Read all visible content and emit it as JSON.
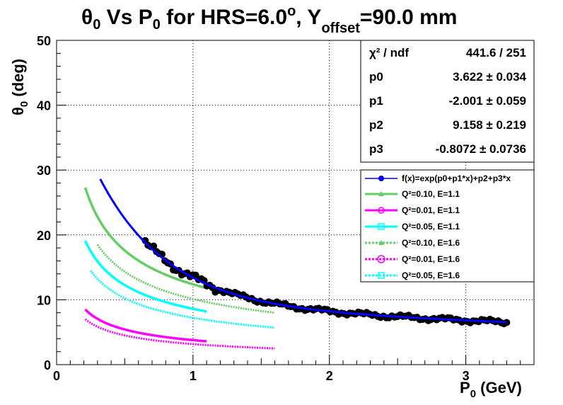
{
  "title": {
    "theta": "θ",
    "sub0": "0",
    "vs": " Vs P",
    "sub0b": "0",
    "for": " for HRS=6.0",
    "deg": "o",
    "comma": ", Y",
    "offset": "offset",
    "tail": "=90.0 mm"
  },
  "stats": {
    "rows": [
      {
        "label": "χ² / ndf",
        "value": "441.6 / 251"
      },
      {
        "label": "p0",
        "value": "3.622 ± 0.034"
      },
      {
        "label": "p1",
        "value": "-2.001 ± 0.059"
      },
      {
        "label": "p2",
        "value": "9.158 ± 0.219"
      },
      {
        "label": "p3",
        "value": "-0.8072 ± 0.0736"
      }
    ]
  },
  "legend": {
    "entries": [
      {
        "text": "f(x)=exp(p0+p1*x)+p2+p3*x",
        "color": "#0000ff"
      },
      {
        "text": "Q²=0.10, E=1.1",
        "color": "#66cc66"
      },
      {
        "text": "Q²=0.01, E=1.1",
        "color": "#ff00ff"
      },
      {
        "text": "Q²=0.05, E=1.1",
        "color": "#00ffff"
      },
      {
        "text": "Q²=0.10, E=1.6",
        "color": "#66cc66"
      },
      {
        "text": "Q²=0.01, E=1.6",
        "color": "#ff00ff"
      },
      {
        "text": "Q²=0.05, E=1.6",
        "color": "#00ffff"
      }
    ]
  },
  "chart_data": {
    "type": "scatter",
    "xlabel": "P",
    "xlabel_sub": "0",
    "xlabel_unit": " (GeV)",
    "ylabel": "θ",
    "ylabel_sub": "0",
    "ylabel_unit": " (deg)",
    "xlim": [
      0,
      3.5
    ],
    "ylim": [
      0,
      50
    ],
    "grid": true,
    "xticks": [
      0,
      1,
      2,
      3
    ],
    "yticks": [
      0,
      10,
      20,
      30,
      40,
      50
    ],
    "fit": {
      "function": "exp(p0+p1*x)+p2+p3*x",
      "p0": 3.622,
      "p1": -2.001,
      "p2": 9.158,
      "p3": -0.8072,
      "x_range": [
        0.32,
        3.3
      ],
      "color": "#0000ff"
    },
    "data_points": {
      "x_range": [
        0.65,
        3.3
      ],
      "color": "#000000"
    },
    "series": [
      {
        "x_range": [
          0.21,
          1.1
        ],
        "y_range": [
          27.3,
          11.8
        ],
        "color": "#66cc66",
        "style": "solid"
      },
      {
        "x_range": [
          0.21,
          1.1
        ],
        "y_range": [
          8.5,
          3.6
        ],
        "color": "#ff00ff",
        "style": "solid"
      },
      {
        "x_range": [
          0.21,
          1.1
        ],
        "y_range": [
          19.1,
          8.2
        ],
        "color": "#00ffff",
        "style": "solid"
      },
      {
        "x_range": [
          0.3,
          1.6
        ],
        "y_range": [
          18.5,
          8.0
        ],
        "color": "#66cc66",
        "style": "dashed"
      },
      {
        "x_range": [
          0.21,
          1.6
        ],
        "y_range": [
          7.0,
          2.5
        ],
        "color": "#ff00ff",
        "style": "dashed"
      },
      {
        "x_range": [
          0.25,
          1.6
        ],
        "y_range": [
          14.5,
          5.7
        ],
        "color": "#00ffff",
        "style": "dashed"
      }
    ]
  }
}
